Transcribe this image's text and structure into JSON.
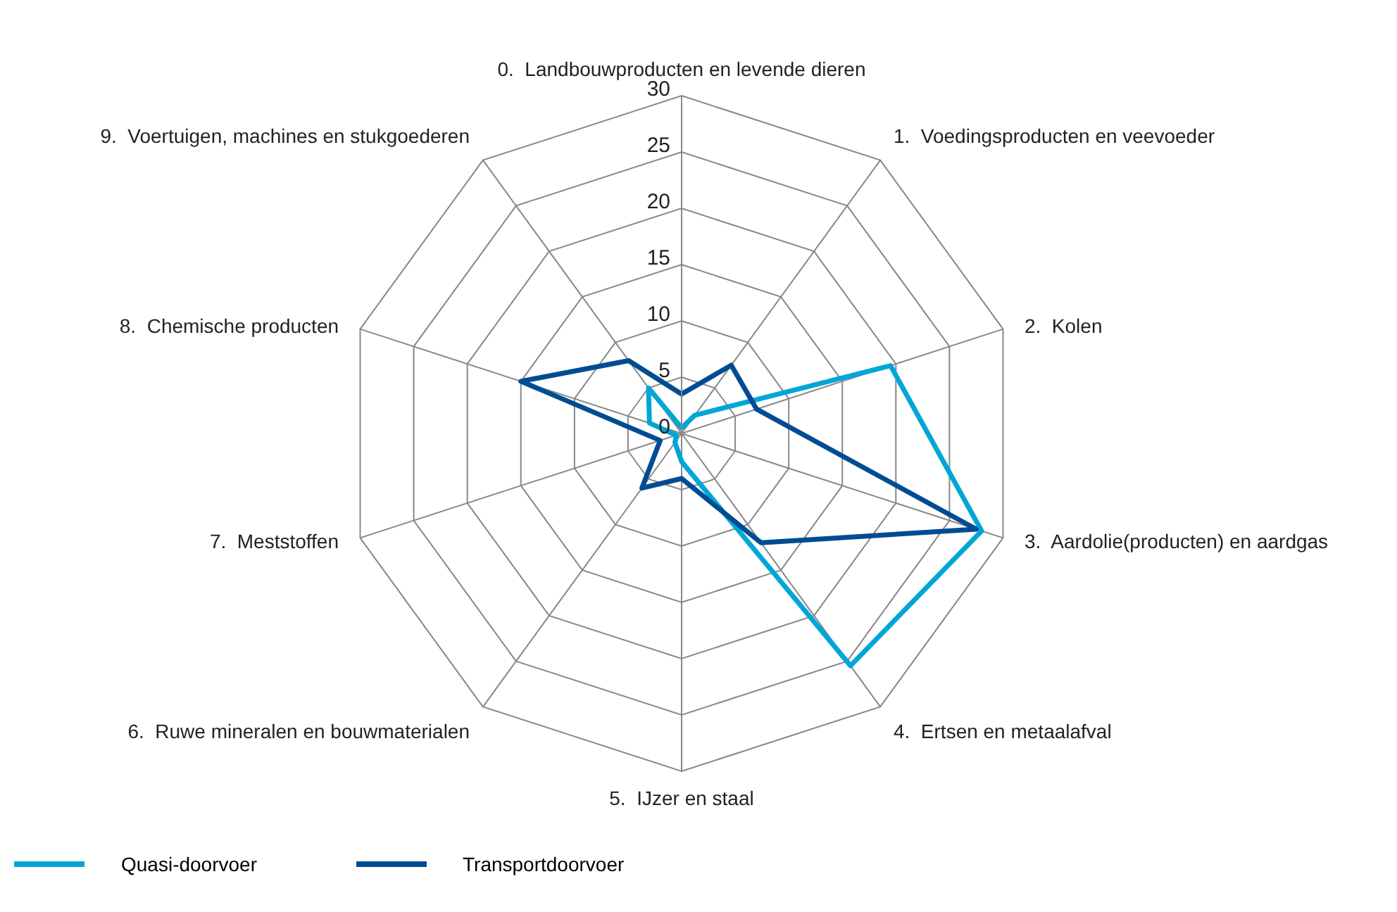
{
  "chart_data": {
    "type": "radar",
    "categories": [
      "0.  Landbouwproducten en levende dieren",
      "1.  Voedingsproducten en veevoeder",
      "2.  Kolen",
      "3.  Aardolie(producten) en aardgas",
      "4.  Ertsen en metaalafval",
      "5.  IJzer en staal",
      "6.  Ruwe mineralen en bouwmaterialen",
      "7.  Meststoffen",
      "8.  Chemische producten",
      "9.  Voertuigen, machines en stukgoederen"
    ],
    "series": [
      {
        "name": "Quasi-doorvoer",
        "color": "#00a6d6",
        "values": [
          0.5,
          2,
          19.5,
          28,
          25.5,
          2.5,
          1,
          0.5,
          3,
          5
        ]
      },
      {
        "name": "Transportdoorvoer",
        "color": "#004c93",
        "values": [
          3.5,
          7.5,
          7,
          27.5,
          12,
          4,
          6,
          2,
          15,
          8
        ]
      }
    ],
    "ylim": [
      0,
      30
    ],
    "yticks": [
      0,
      5,
      10,
      15,
      20,
      25,
      30
    ],
    "grid": true,
    "legend": "bottom left",
    "marker": "none"
  }
}
